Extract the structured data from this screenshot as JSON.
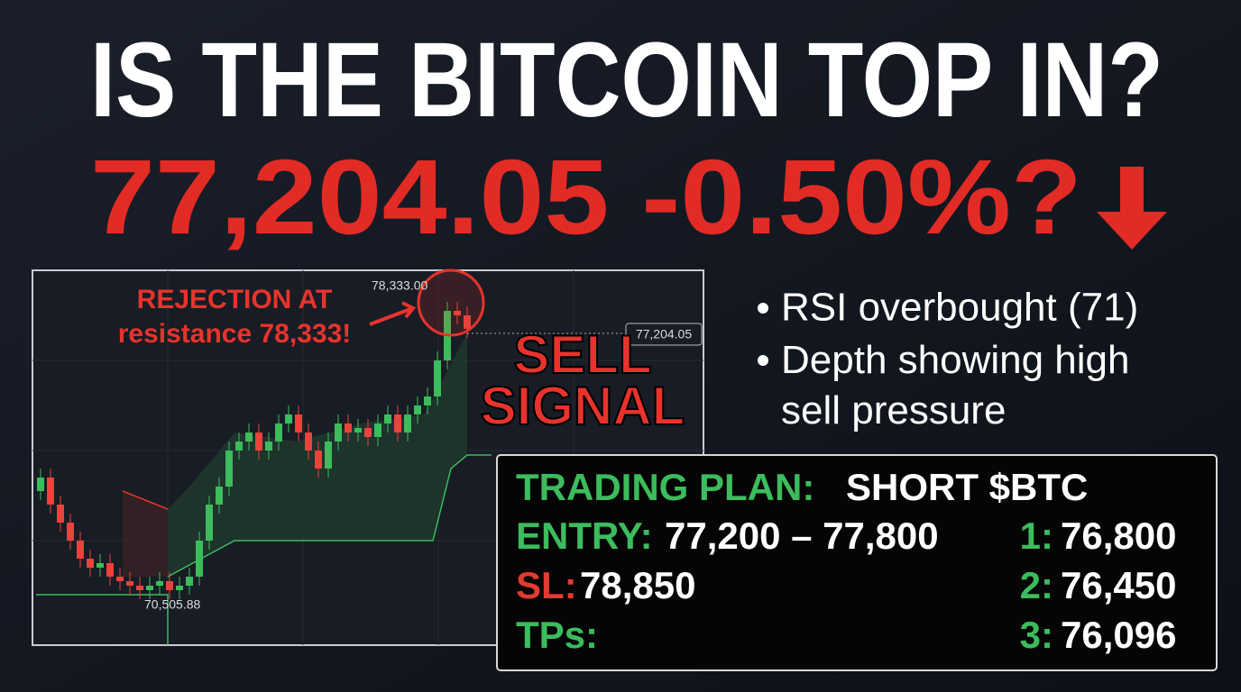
{
  "headline": "IS THE BITCOIN TOP IN?",
  "price_line": "77,204.05 -0.50%?",
  "chart": {
    "annotation": [
      "REJECTION AT",
      "resistance 78,333!"
    ],
    "high_label": "78,333.00",
    "current_label": "77,204.05",
    "low_label": "70,505.88",
    "signal": [
      "SELL",
      "SIGNAL"
    ]
  },
  "bullets": [
    "RSI overbought (71)",
    "Depth showing high sell pressure"
  ],
  "plan": {
    "title": "TRADING PLAN:",
    "position": "SHORT $BTC",
    "entry_label": "ENTRY:",
    "entry": "77,200 – 77,800",
    "sl_label": "SL:",
    "sl": "78,850",
    "tps_label": "TPs:",
    "targets": [
      {
        "label": "1:",
        "value": "76,800"
      },
      {
        "label": "2:",
        "value": "76,450"
      },
      {
        "label": "3:",
        "value": "76,096"
      }
    ]
  }
}
